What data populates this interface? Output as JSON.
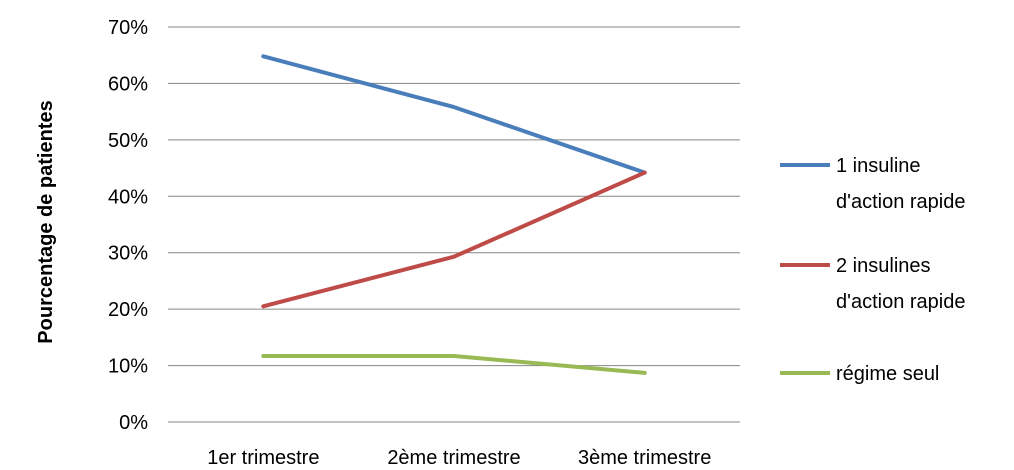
{
  "chart_data": {
    "type": "line",
    "title": "",
    "xlabel": "",
    "ylabel": "Pourcentage de patientes",
    "categories": [
      "1er trimestre",
      "2ème trimestre",
      "3ème trimestre"
    ],
    "yticks": [
      "0%",
      "10%",
      "20%",
      "30%",
      "40%",
      "50%",
      "60%",
      "70%"
    ],
    "ylim": [
      0,
      0.7
    ],
    "grid": true,
    "legend_position": "right",
    "series": [
      {
        "name": "1 insuline d'action rapide",
        "legend_lines": [
          "1 insuline",
          "d'action rapide"
        ],
        "values": [
          0.648,
          0.558,
          0.442
        ],
        "color": "#4a7ebb"
      },
      {
        "name": "2 insulines d'action rapide",
        "legend_lines": [
          "2 insulines",
          "d'action rapide"
        ],
        "values": [
          0.205,
          0.293,
          0.442
        ],
        "color": "#be4b48"
      },
      {
        "name": "régime seul",
        "legend_lines": [
          "régime seul"
        ],
        "values": [
          0.117,
          0.117,
          0.087
        ],
        "color": "#98b954"
      }
    ]
  }
}
